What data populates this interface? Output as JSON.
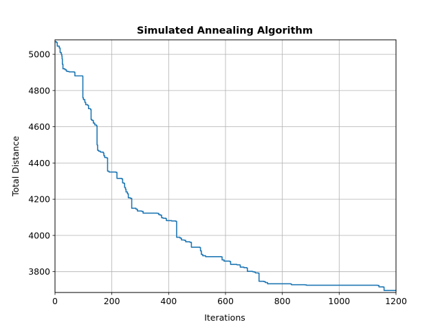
{
  "chart_data": {
    "type": "line",
    "title": "Simulated Annealing Algorithm",
    "xlabel": "Iterations",
    "ylabel": "Total Distance",
    "xlim": [
      0,
      1200
    ],
    "ylim": [
      3685,
      5080
    ],
    "xticks": [
      0,
      200,
      400,
      600,
      800,
      1000,
      1200
    ],
    "yticks": [
      3800,
      4000,
      4200,
      4400,
      4600,
      4800,
      5000
    ],
    "grid": true,
    "line_color": "#1f77b4",
    "series": [
      {
        "points": [
          [
            0,
            5070
          ],
          [
            5,
            5065
          ],
          [
            8,
            5045
          ],
          [
            15,
            5035
          ],
          [
            18,
            5010
          ],
          [
            22,
            5000
          ],
          [
            24,
            4990
          ],
          [
            25,
            4975
          ],
          [
            26,
            4945
          ],
          [
            28,
            4920
          ],
          [
            35,
            4915
          ],
          [
            40,
            4907
          ],
          [
            45,
            4905
          ],
          [
            50,
            4903
          ],
          [
            68,
            4901
          ],
          [
            70,
            4881
          ],
          [
            97,
            4880
          ],
          [
            98,
            4760
          ],
          [
            100,
            4750
          ],
          [
            105,
            4735
          ],
          [
            108,
            4722
          ],
          [
            115,
            4718
          ],
          [
            118,
            4700
          ],
          [
            125,
            4695
          ],
          [
            127,
            4640
          ],
          [
            130,
            4635
          ],
          [
            135,
            4620
          ],
          [
            140,
            4610
          ],
          [
            146,
            4605
          ],
          [
            148,
            4500
          ],
          [
            150,
            4470
          ],
          [
            154,
            4465
          ],
          [
            160,
            4460
          ],
          [
            170,
            4455
          ],
          [
            172,
            4440
          ],
          [
            175,
            4430
          ],
          [
            182,
            4428
          ],
          [
            185,
            4355
          ],
          [
            190,
            4350
          ],
          [
            215,
            4348
          ],
          [
            218,
            4315
          ],
          [
            235,
            4312
          ],
          [
            238,
            4290
          ],
          [
            243,
            4287
          ],
          [
            245,
            4265
          ],
          [
            248,
            4255
          ],
          [
            250,
            4240
          ],
          [
            255,
            4230
          ],
          [
            258,
            4208
          ],
          [
            265,
            4205
          ],
          [
            270,
            4150
          ],
          [
            285,
            4145
          ],
          [
            290,
            4135
          ],
          [
            305,
            4133
          ],
          [
            310,
            4123
          ],
          [
            360,
            4122
          ],
          [
            365,
            4115
          ],
          [
            370,
            4112
          ],
          [
            375,
            4098
          ],
          [
            380,
            4095
          ],
          [
            390,
            4093
          ],
          [
            392,
            4082
          ],
          [
            410,
            4080
          ],
          [
            425,
            4078
          ],
          [
            428,
            3990
          ],
          [
            440,
            3985
          ],
          [
            445,
            3975
          ],
          [
            455,
            3973
          ],
          [
            460,
            3965
          ],
          [
            475,
            3962
          ],
          [
            480,
            3935
          ],
          [
            510,
            3933
          ],
          [
            512,
            3915
          ],
          [
            515,
            3895
          ],
          [
            520,
            3888
          ],
          [
            530,
            3883
          ],
          [
            585,
            3882
          ],
          [
            588,
            3865
          ],
          [
            595,
            3858
          ],
          [
            615,
            3856
          ],
          [
            618,
            3840
          ],
          [
            640,
            3838
          ],
          [
            650,
            3837
          ],
          [
            652,
            3825
          ],
          [
            665,
            3822
          ],
          [
            675,
            3820
          ],
          [
            677,
            3802
          ],
          [
            695,
            3800
          ],
          [
            700,
            3798
          ],
          [
            705,
            3793
          ],
          [
            715,
            3792
          ],
          [
            718,
            3747
          ],
          [
            735,
            3745
          ],
          [
            740,
            3740
          ],
          [
            748,
            3733
          ],
          [
            830,
            3732
          ],
          [
            832,
            3728
          ],
          [
            880,
            3727
          ],
          [
            885,
            3725
          ],
          [
            1135,
            3724
          ],
          [
            1140,
            3716
          ],
          [
            1155,
            3715
          ],
          [
            1158,
            3696
          ],
          [
            1200,
            3695
          ]
        ]
      }
    ]
  }
}
